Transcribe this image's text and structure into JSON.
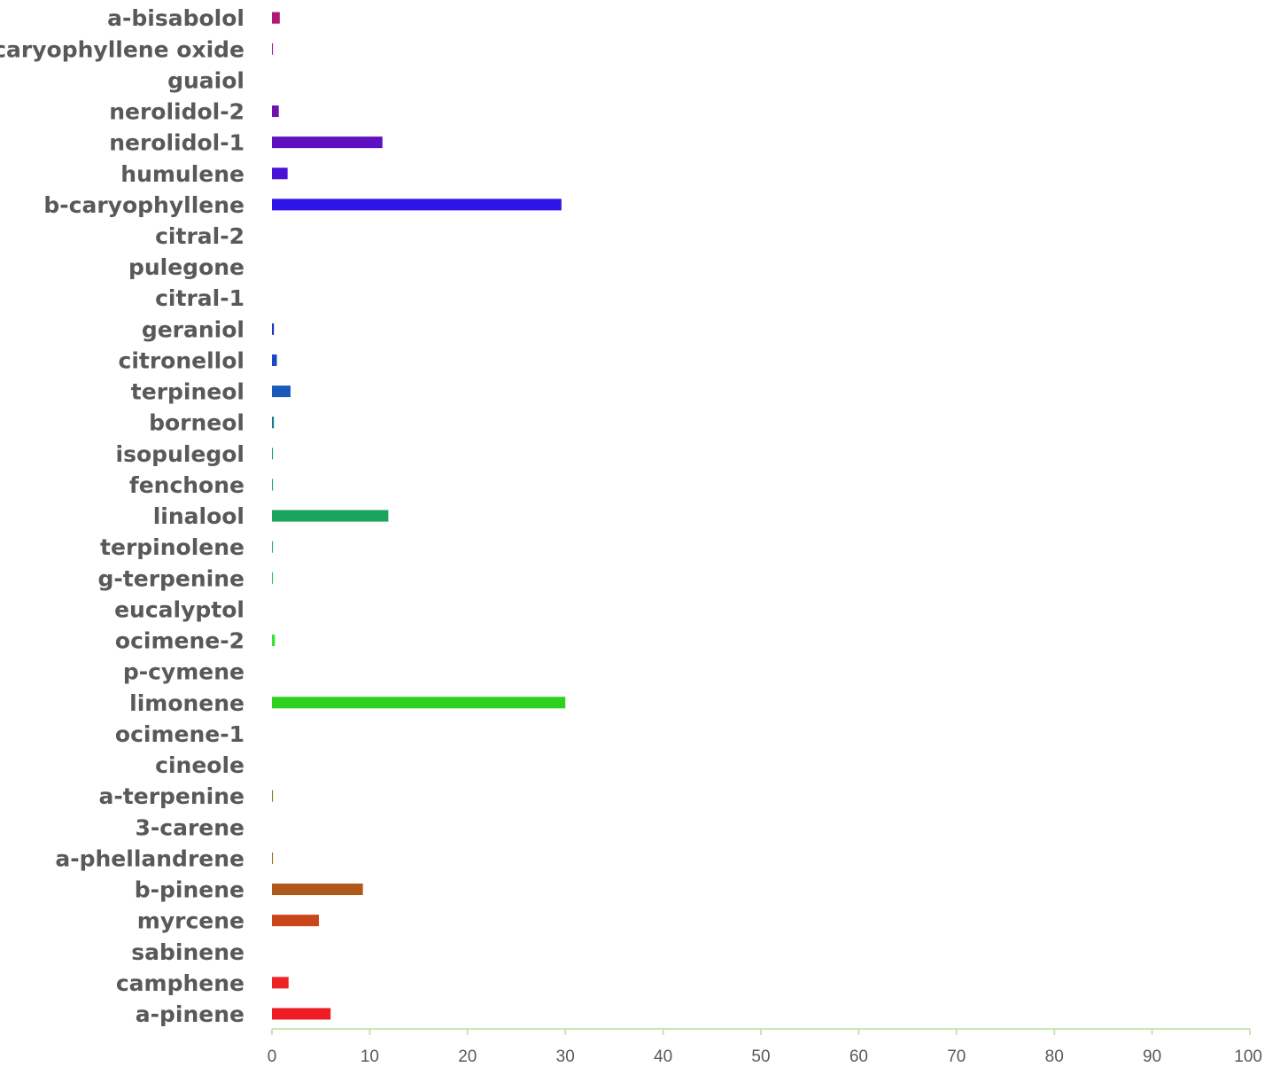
{
  "chart_data": {
    "type": "bar",
    "orientation": "horizontal",
    "title": "",
    "xlabel": "",
    "ylabel": "",
    "xlim": [
      0,
      100
    ],
    "x_ticks": [
      0,
      10,
      20,
      30,
      40,
      50,
      60,
      70,
      80,
      90,
      100
    ],
    "grid": false,
    "legend": "none",
    "axis_color": "#c9e5b8",
    "label_color": "#595959",
    "categories": [
      "a-pinene",
      "camphene",
      "sabinene",
      "myrcene",
      "b-pinene",
      "a-phellandrene",
      "3-carene",
      "a-terpenine",
      "cineole",
      "ocimene-1",
      "limonene",
      "p-cymene",
      "ocimene-2",
      "eucalyptol",
      "g-terpenine",
      "terpinolene",
      "linalool",
      "fenchone",
      "isopulegol",
      "borneol",
      "terpineol",
      "citronellol",
      "geraniol",
      "citral-1",
      "pulegone",
      "citral-2",
      "b-caryophyllene",
      "humulene",
      "nerolidol-1",
      "nerolidol-2",
      "guaiol",
      "caryophyllene oxide",
      "a-bisabolol"
    ],
    "values": [
      6.0,
      1.7,
      0,
      4.8,
      9.3,
      0.1,
      0,
      0.1,
      0,
      0,
      30.0,
      0,
      0.3,
      0,
      0.1,
      0.1,
      11.9,
      0.1,
      0.1,
      0.2,
      1.9,
      0.5,
      0.2,
      0,
      0,
      0,
      29.6,
      1.6,
      11.3,
      0.7,
      0,
      0.1,
      0.8
    ],
    "colors": [
      "#ee1c24",
      "#ee2424",
      "#e03a1c",
      "#c8461a",
      "#b05a1a",
      "#a0641e",
      "#8c6e1e",
      "#7a7a1e",
      "#5c8a1e",
      "#42a51e",
      "#2fd11e",
      "#30d02a",
      "#38e03a",
      "#30c848",
      "#2cb858",
      "#28ac5c",
      "#1aa35a",
      "#16a06c",
      "#12967a",
      "#127a8a",
      "#1a5ab8",
      "#1a46c8",
      "#1a36c0",
      "#2430c8",
      "#2a28d0",
      "#3020dc",
      "#2f14e8",
      "#4a12d4",
      "#5c10c0",
      "#6e12b0",
      "#861296",
      "#9c1488",
      "#b01878"
    ]
  }
}
